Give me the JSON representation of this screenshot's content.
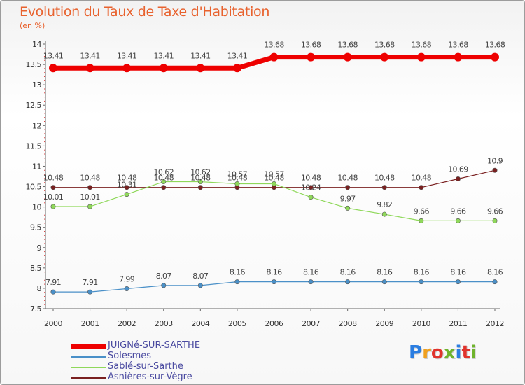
{
  "title": "Evolution du Taux de Taxe d'Habitation",
  "subtitle": "(en %)",
  "logo": {
    "text": "Proxiti",
    "colors": [
      "#2a7de1",
      "#f0a01e",
      "#e0332c",
      "#6fb42c",
      "#2a7de1",
      "#e0332c",
      "#6fb42c"
    ]
  },
  "chart_data": {
    "type": "line",
    "x": [
      "2000",
      "2001",
      "2002",
      "2003",
      "2004",
      "2005",
      "2006",
      "2007",
      "2008",
      "2009",
      "2010",
      "2011",
      "2012"
    ],
    "ylim": [
      7.5,
      14
    ],
    "yticks": [
      "7.5",
      "8",
      "8.5",
      "9",
      "9.5",
      "10",
      "10.5",
      "11",
      "11.5",
      "12",
      "12.5",
      "13",
      "13.5",
      "14"
    ],
    "grid": false,
    "legend_position": "bottom-left",
    "series": [
      {
        "name": "JUIGNé-SUR-SARTHE",
        "color": "#ee0000",
        "width": 7,
        "marker": 6,
        "values": [
          13.41,
          13.41,
          13.41,
          13.41,
          13.41,
          13.41,
          13.68,
          13.68,
          13.68,
          13.68,
          13.68,
          13.68,
          13.68
        ],
        "labels": [
          "13.41",
          "13.41",
          "13.41",
          "13.41",
          "13.41",
          "13.41",
          "13.68",
          "13.68",
          "13.68",
          "13.68",
          "13.68",
          "13.68",
          "13.68"
        ]
      },
      {
        "name": "Solesmes",
        "color": "#4a90c8",
        "width": 1.2,
        "marker": 3.2,
        "values": [
          7.91,
          7.91,
          7.99,
          8.07,
          8.07,
          8.16,
          8.16,
          8.16,
          8.16,
          8.16,
          8.16,
          8.16,
          8.16
        ],
        "labels": [
          "7.91",
          "7.91",
          "7.99",
          "8.07",
          "8.07",
          "8.16",
          "8.16",
          "8.16",
          "8.16",
          "8.16",
          "8.16",
          "8.16",
          "8.16"
        ]
      },
      {
        "name": "Sablé-sur-Sarthe",
        "color": "#8fd85a",
        "width": 1.2,
        "marker": 3.2,
        "values": [
          10.01,
          10.01,
          10.31,
          10.62,
          10.62,
          10.57,
          10.57,
          10.24,
          9.97,
          9.82,
          9.66,
          9.66,
          9.66
        ],
        "labels": [
          "10.01",
          "10.01",
          "10.31",
          "10.62",
          "10.62",
          "10.57",
          "10.57",
          "10.24",
          "9.97",
          "9.82",
          "9.66",
          "9.66",
          "9.66"
        ]
      },
      {
        "name": "Asnières-sur-Vègre",
        "color": "#7a2020",
        "width": 1.2,
        "marker": 3.2,
        "values": [
          10.48,
          10.48,
          10.48,
          10.48,
          10.48,
          10.48,
          10.48,
          10.48,
          10.48,
          10.48,
          10.48,
          10.69,
          10.9
        ],
        "labels": [
          "10.48",
          "10.48",
          "10.48",
          "10.48",
          "10.48",
          "10.48",
          "10.48",
          "10.48",
          "10.48",
          "10.48",
          "10.48",
          "10.69",
          "10.9"
        ]
      }
    ]
  }
}
